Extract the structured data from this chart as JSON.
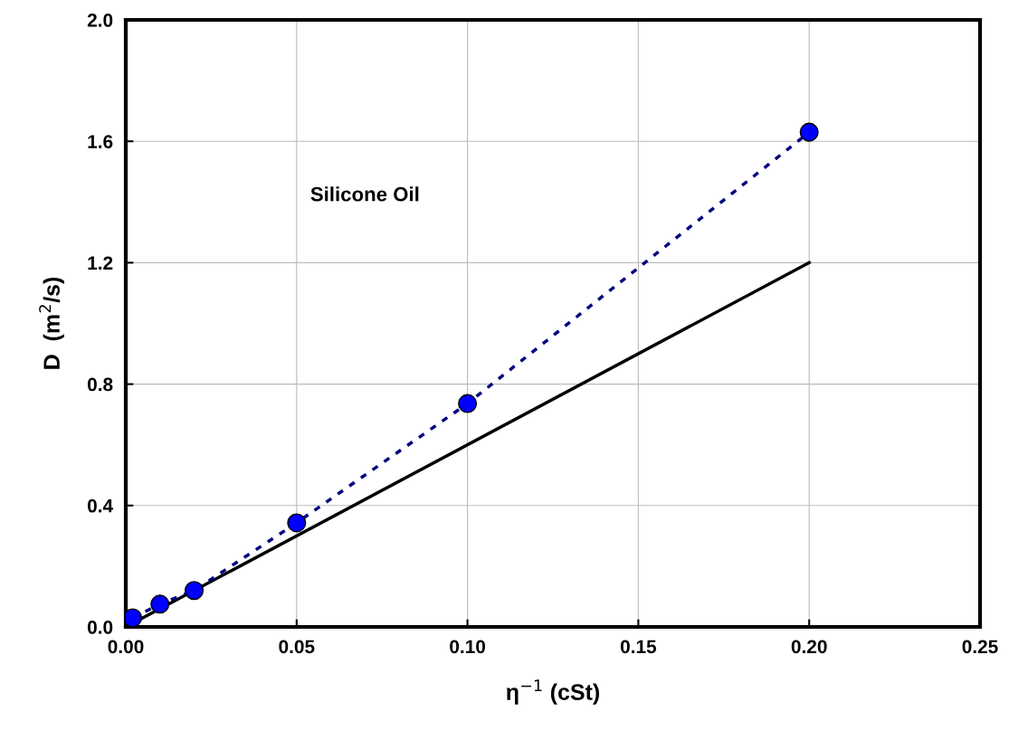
{
  "chart_data": {
    "type": "scatter",
    "xlabel": "η$^{−1}$ (cSt)",
    "ylabel": "D  (m$^{2}$/s)",
    "annotations": [
      "Silicone Oil"
    ],
    "xlim": [
      0,
      0.25
    ],
    "ylim": [
      0,
      2.0
    ],
    "xticks": [
      {
        "value": 0,
        "label": "0.00"
      },
      {
        "value": 0.05,
        "label": "0.05"
      },
      {
        "value": 0.1,
        "label": "0.10"
      },
      {
        "value": 0.15,
        "label": "0.15"
      },
      {
        "value": 0.2,
        "label": "0.20"
      },
      {
        "value": 0.25,
        "label": "0.25"
      }
    ],
    "yticks": [
      {
        "value": 0,
        "label": "0.0"
      },
      {
        "value": 0.4,
        "label": "0.4"
      },
      {
        "value": 0.8,
        "label": "0.8"
      },
      {
        "value": 1.2,
        "label": "1.2"
      },
      {
        "value": 1.6,
        "label": "1.6"
      },
      {
        "value": 2.0,
        "label": "2.0"
      }
    ],
    "grid": true,
    "series": [
      {
        "type": "line",
        "color": "#000000",
        "x": [
          0,
          0.2
        ],
        "values": [
          0,
          1.2
        ],
        "line_style": "solid",
        "marker": "none"
      },
      {
        "type": "line",
        "color": "#000080",
        "x": [
          0.002,
          0.01,
          0.02,
          0.05,
          0.1,
          0.2
        ],
        "values": [
          0.03,
          0.075,
          0.12,
          0.343,
          0.736,
          1.63
        ],
        "line_style": "dotted",
        "marker": "none"
      },
      {
        "color": "#0000ff",
        "x": [
          0.002,
          0.01,
          0.02,
          0.05,
          0.1,
          0.2
        ],
        "values": [
          0.03,
          0.075,
          0.12,
          0.343,
          0.736,
          1.63
        ],
        "marker": "circle"
      }
    ]
  }
}
